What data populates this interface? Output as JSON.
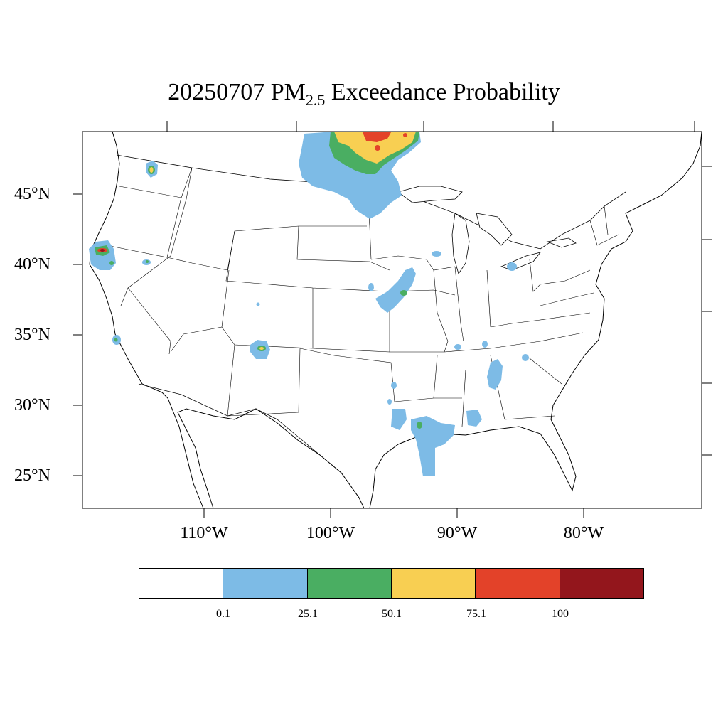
{
  "title": {
    "prefix": "20250707 PM",
    "subscript": "2.5",
    "suffix": " Exceedance Probability"
  },
  "map": {
    "lat_labels": [
      "45°N",
      "40°N",
      "35°N",
      "30°N",
      "25°N"
    ],
    "lon_labels": [
      "110°W",
      "100°W",
      "90°W",
      "80°W"
    ],
    "colors": {
      "land_fill": "#ffffff",
      "boundary": "#000000"
    }
  },
  "colorbar": {
    "levels": [
      "0.1",
      "25.1",
      "50.1",
      "75.1",
      "100"
    ],
    "colors": [
      "#ffffff",
      "#7dbbe6",
      "#4aae62",
      "#f8cf52",
      "#e34229",
      "#93161c"
    ]
  },
  "probability_regions": [
    {
      "area": "North Dakota / Minnesota / Manitoba border",
      "max_level": "100"
    },
    {
      "area": "Northern California / Oregon border",
      "max_level": "100"
    },
    {
      "area": "Northern Idaho / Washington",
      "max_level": "75.1"
    },
    {
      "area": "Northern New Mexico",
      "max_level": "75.1"
    },
    {
      "area": "Missouri / Iowa",
      "max_level": "50.1"
    },
    {
      "area": "Louisiana / Gulf coast",
      "max_level": "50.1"
    },
    {
      "area": "Arizona / California border",
      "max_level": "50.1"
    },
    {
      "area": "Alabama / Georgia / Mississippi",
      "max_level": "25.1"
    }
  ]
}
